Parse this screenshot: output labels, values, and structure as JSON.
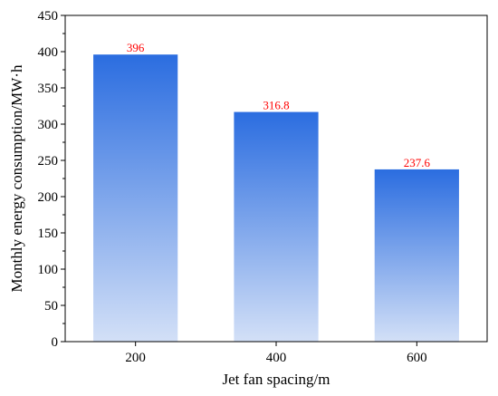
{
  "chart_data": {
    "type": "bar",
    "categories": [
      "200",
      "400",
      "600"
    ],
    "values": [
      396,
      316.8,
      237.6
    ],
    "value_labels": [
      "396",
      "316.8",
      "237.6"
    ],
    "title": "",
    "xlabel": "Jet fan spacing/m",
    "ylabel": "Monthly energy consumption/MW·h",
    "ylim": [
      0,
      450
    ],
    "yticks": [
      0,
      50,
      100,
      150,
      200,
      250,
      300,
      350,
      400,
      450
    ],
    "ytick_labels": [
      "0",
      "50",
      "100",
      "150",
      "200",
      "250",
      "300",
      "350",
      "400",
      "450"
    ],
    "grid": false,
    "legend": "none",
    "colors": {
      "bar_top": "#2b6de0",
      "bar_bottom": "#d3e0f7",
      "data_label": "#ff0000",
      "axis": "#000000"
    }
  }
}
